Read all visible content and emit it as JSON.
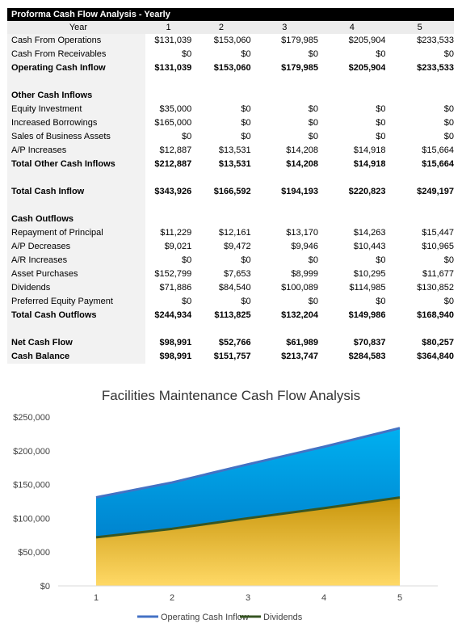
{
  "table": {
    "title": "Proforma Cash Flow Analysis - Yearly",
    "year_label": "Year",
    "years": [
      "1",
      "2",
      "3",
      "4",
      "5"
    ],
    "rows": [
      {
        "label": "Cash From Operations",
        "values": [
          "$131,039",
          "$153,060",
          "$179,985",
          "$205,904",
          "$233,533"
        ],
        "bold": false
      },
      {
        "label": "Cash From Receivables",
        "values": [
          "$0",
          "$0",
          "$0",
          "$0",
          "$0"
        ],
        "bold": false
      },
      {
        "label": "Operating Cash Inflow",
        "values": [
          "$131,039",
          "$153,060",
          "$179,985",
          "$205,904",
          "$233,533"
        ],
        "bold": true
      },
      {
        "label": "",
        "values": [
          "",
          "",
          "",
          "",
          ""
        ],
        "bold": false
      },
      {
        "label": "Other Cash Inflows",
        "values": [
          "",
          "",
          "",
          "",
          ""
        ],
        "bold": true
      },
      {
        "label": "Equity Investment",
        "values": [
          "$35,000",
          "$0",
          "$0",
          "$0",
          "$0"
        ],
        "bold": false
      },
      {
        "label": "Increased Borrowings",
        "values": [
          "$165,000",
          "$0",
          "$0",
          "$0",
          "$0"
        ],
        "bold": false
      },
      {
        "label": "Sales of Business Assets",
        "values": [
          "$0",
          "$0",
          "$0",
          "$0",
          "$0"
        ],
        "bold": false
      },
      {
        "label": "A/P Increases",
        "values": [
          "$12,887",
          "$13,531",
          "$14,208",
          "$14,918",
          "$15,664"
        ],
        "bold": false
      },
      {
        "label": "Total Other Cash Inflows",
        "values": [
          "$212,887",
          "$13,531",
          "$14,208",
          "$14,918",
          "$15,664"
        ],
        "bold": true
      },
      {
        "label": "",
        "values": [
          "",
          "",
          "",
          "",
          ""
        ],
        "bold": false
      },
      {
        "label": "Total Cash Inflow",
        "values": [
          "$343,926",
          "$166,592",
          "$194,193",
          "$220,823",
          "$249,197"
        ],
        "bold": true
      },
      {
        "label": "",
        "values": [
          "",
          "",
          "",
          "",
          ""
        ],
        "bold": false
      },
      {
        "label": "Cash Outflows",
        "values": [
          "",
          "",
          "",
          "",
          ""
        ],
        "bold": true
      },
      {
        "label": "Repayment of Principal",
        "values": [
          "$11,229",
          "$12,161",
          "$13,170",
          "$14,263",
          "$15,447"
        ],
        "bold": false
      },
      {
        "label": "A/P Decreases",
        "values": [
          "$9,021",
          "$9,472",
          "$9,946",
          "$10,443",
          "$10,965"
        ],
        "bold": false
      },
      {
        "label": "A/R Increases",
        "values": [
          "$0",
          "$0",
          "$0",
          "$0",
          "$0"
        ],
        "bold": false
      },
      {
        "label": "Asset Purchases",
        "values": [
          "$152,799",
          "$7,653",
          "$8,999",
          "$10,295",
          "$11,677"
        ],
        "bold": false
      },
      {
        "label": "Dividends",
        "values": [
          "$71,886",
          "$84,540",
          "$100,089",
          "$114,985",
          "$130,852"
        ],
        "bold": false
      },
      {
        "label": "Preferred Equity Payment",
        "values": [
          "$0",
          "$0",
          "$0",
          "$0",
          "$0"
        ],
        "bold": false
      },
      {
        "label": "Total Cash Outflows",
        "values": [
          "$244,934",
          "$113,825",
          "$132,204",
          "$149,986",
          "$168,940"
        ],
        "bold": true
      },
      {
        "label": "",
        "values": [
          "",
          "",
          "",
          "",
          ""
        ],
        "bold": false
      },
      {
        "label": "Net Cash Flow",
        "values": [
          "$98,991",
          "$52,766",
          "$61,989",
          "$70,837",
          "$80,257"
        ],
        "bold": true
      },
      {
        "label": "Cash Balance",
        "values": [
          "$98,991",
          "$151,757",
          "$213,747",
          "$284,583",
          "$364,840"
        ],
        "bold": true
      }
    ]
  },
  "chart_data": {
    "type": "area",
    "title": "Facilities Maintenance Cash Flow Analysis",
    "x": [
      1,
      2,
      3,
      4,
      5
    ],
    "series": [
      {
        "name": "Operating Cash Inflow",
        "values": [
          131039,
          153060,
          179985,
          205904,
          233533
        ],
        "color": "#4472c4",
        "fill_top": "#00b0f0",
        "fill_bottom": "#0070c0"
      },
      {
        "name": "Dividends",
        "values": [
          71886,
          84540,
          100089,
          114985,
          130852
        ],
        "color": "#375623",
        "fill_top": "#c9960c",
        "fill_bottom": "#ffd966"
      }
    ],
    "ylim": [
      0,
      250000
    ],
    "yticks": [
      0,
      50000,
      100000,
      150000,
      200000,
      250000
    ],
    "ytick_labels": [
      "$0",
      "$50,000",
      "$100,000",
      "$150,000",
      "$200,000",
      "$250,000"
    ],
    "xtick_labels": [
      "1",
      "2",
      "3",
      "4",
      "5"
    ],
    "legend_position": "bottom",
    "grid": false
  }
}
